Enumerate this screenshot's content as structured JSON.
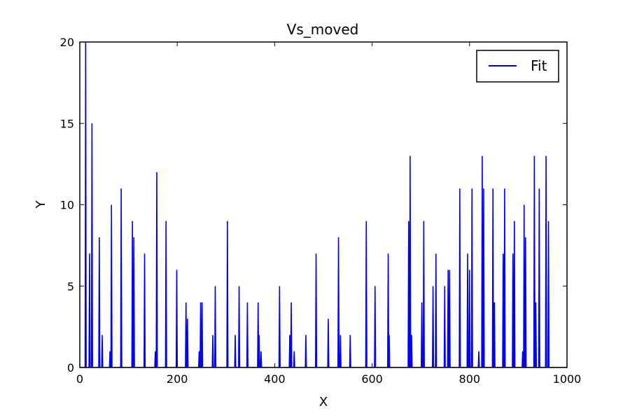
{
  "chart_data": {
    "type": "line",
    "title": "Vs_moved",
    "xlabel": "X",
    "ylabel": "Y",
    "xlim": [
      0,
      1000
    ],
    "ylim": [
      0,
      20
    ],
    "xticks": [
      0,
      200,
      400,
      600,
      800,
      1000
    ],
    "yticks": [
      0,
      5,
      10,
      15,
      20
    ],
    "grid": false,
    "legend_position": "top-right",
    "colors": {
      "series": "#0000ff",
      "axes": "#000000",
      "background": "#ffffff"
    },
    "series": [
      {
        "name": "Fit",
        "spikes": [
          [
            12,
            20
          ],
          [
            20,
            7
          ],
          [
            25,
            15
          ],
          [
            40,
            8
          ],
          [
            46,
            2
          ],
          [
            62,
            1
          ],
          [
            65,
            10
          ],
          [
            85,
            11
          ],
          [
            108,
            9
          ],
          [
            111,
            8
          ],
          [
            133,
            7
          ],
          [
            155,
            1
          ],
          [
            158,
            12
          ],
          [
            177,
            9
          ],
          [
            199,
            6
          ],
          [
            218,
            4
          ],
          [
            221,
            3
          ],
          [
            245,
            1
          ],
          [
            248,
            4
          ],
          [
            251,
            4
          ],
          [
            273,
            2
          ],
          [
            278,
            5
          ],
          [
            303,
            9
          ],
          [
            319,
            2
          ],
          [
            327,
            5
          ],
          [
            344,
            4
          ],
          [
            366,
            4
          ],
          [
            368,
            2
          ],
          [
            372,
            1
          ],
          [
            410,
            5
          ],
          [
            431,
            2
          ],
          [
            434,
            4
          ],
          [
            440,
            1
          ],
          [
            464,
            2
          ],
          [
            485,
            7
          ],
          [
            510,
            3
          ],
          [
            531,
            8
          ],
          [
            535,
            2
          ],
          [
            555,
            2
          ],
          [
            588,
            9
          ],
          [
            606,
            5
          ],
          [
            633,
            7
          ],
          [
            635,
            2
          ],
          [
            675,
            9
          ],
          [
            678,
            13
          ],
          [
            681,
            2
          ],
          [
            702,
            4
          ],
          [
            706,
            9
          ],
          [
            725,
            5
          ],
          [
            731,
            7
          ],
          [
            749,
            5
          ],
          [
            756,
            6
          ],
          [
            759,
            6
          ],
          [
            780,
            11
          ],
          [
            796,
            7
          ],
          [
            800,
            6
          ],
          [
            805,
            11
          ],
          [
            819,
            1
          ],
          [
            826,
            13
          ],
          [
            829,
            11
          ],
          [
            848,
            11
          ],
          [
            851,
            4
          ],
          [
            869,
            7
          ],
          [
            872,
            11
          ],
          [
            889,
            7
          ],
          [
            892,
            9
          ],
          [
            909,
            1
          ],
          [
            912,
            10
          ],
          [
            915,
            8
          ],
          [
            933,
            13
          ],
          [
            936,
            4
          ],
          [
            943,
            11
          ],
          [
            957,
            13
          ],
          [
            962,
            9
          ]
        ]
      }
    ]
  }
}
